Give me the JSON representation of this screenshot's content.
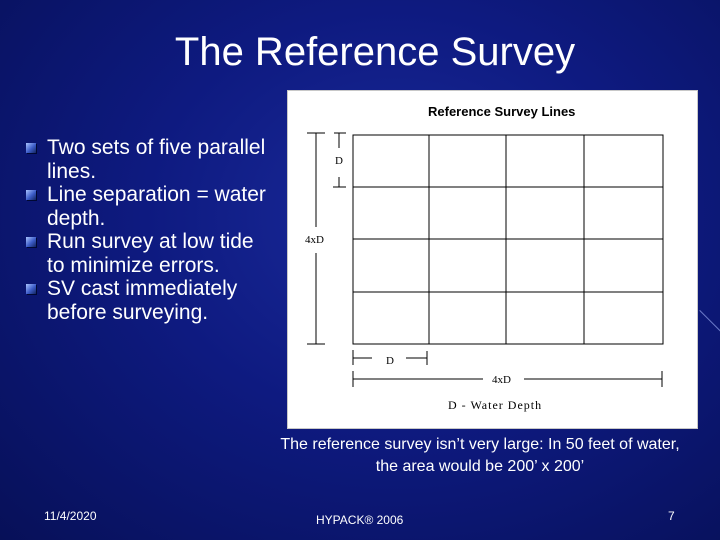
{
  "slide": {
    "title": "The Reference Survey",
    "bullets": [
      "Two sets of five parallel lines.",
      "Line separation = water depth.",
      "Run survey at low tide to minimize errors.",
      "SV cast immediately before surveying."
    ],
    "caption": "The reference survey isn’t very large: In 50 feet of water, the area would be 200’ x 200’",
    "footer": {
      "date": "11/4/2020",
      "center": "HYPACK® 2006",
      "page": "7"
    }
  },
  "figure": {
    "title": "Reference Survey Lines",
    "label_d_vertical": "D",
    "label_4xd_vertical": "4xD",
    "label_d_horizontal": "D",
    "label_4xd_horizontal": "4xD",
    "legend": "D - Water Depth"
  }
}
